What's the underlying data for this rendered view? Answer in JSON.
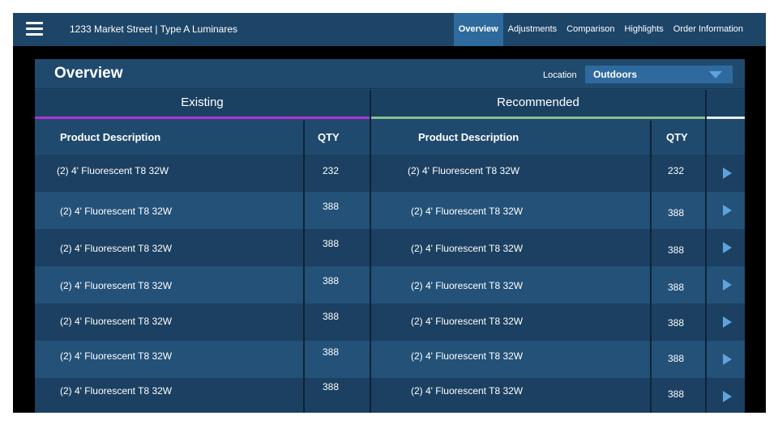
{
  "header": {
    "title": "1233 Market Street | Type A Luminares",
    "menu_icon": "hamburger-menu-icon",
    "tabs": [
      {
        "label": "Overview",
        "active": true
      },
      {
        "label": "Adjustments",
        "active": false
      },
      {
        "label": "Comparison",
        "active": false
      },
      {
        "label": "Highlights",
        "active": false
      },
      {
        "label": "Order Information",
        "active": false
      }
    ]
  },
  "panel": {
    "title": "Overview",
    "location_label": "Location",
    "location_value": "Outdoors"
  },
  "sections": {
    "existing": "Existing",
    "recommended": "Recommended"
  },
  "columns": {
    "existing_desc": "Product Description",
    "existing_qty": "QTY",
    "recommended_desc": "Product Description",
    "recommended_qty": "QTY"
  },
  "rows": [
    {
      "existing_desc": "(2) 4' Fluorescent T8 32W",
      "existing_qty": "232",
      "recommended_desc": "(2) 4' Fluorescent T8 32W",
      "recommended_qty": "232"
    },
    {
      "existing_desc": "(2) 4' Fluorescent T8 32W",
      "existing_qty": "388",
      "recommended_desc": "(2) 4' Fluorescent T8 32W",
      "recommended_qty": "388"
    },
    {
      "existing_desc": "(2) 4' Fluorescent T8 32W",
      "existing_qty": "388",
      "recommended_desc": "(2) 4' Fluorescent T8 32W",
      "recommended_qty": "388"
    },
    {
      "existing_desc": "(2) 4' Fluorescent T8 32W",
      "existing_qty": "388",
      "recommended_desc": "(2) 4' Fluorescent T8 32W",
      "recommended_qty": "388"
    },
    {
      "existing_desc": "(2) 4' Fluorescent T8 32W",
      "existing_qty": "388",
      "recommended_desc": "(2) 4' Fluorescent T8 32W",
      "recommended_qty": "388"
    },
    {
      "existing_desc": "(2) 4' Fluorescent T8 32W",
      "existing_qty": "388",
      "recommended_desc": "(2) 4' Fluorescent T8 32W",
      "recommended_qty": "388"
    },
    {
      "existing_desc": "(2) 4' Fluorescent T8 32W",
      "existing_qty": "388",
      "recommended_desc": "(2) 4' Fluorescent T8 32W",
      "recommended_qty": "388"
    }
  ],
  "colors": {
    "topbar": "#1d4568",
    "active_tab": "#2e6a9e",
    "existing_accent": "#b231d6",
    "recommended_accent": "#8ac18c",
    "arrow": "#5fa3dc"
  }
}
